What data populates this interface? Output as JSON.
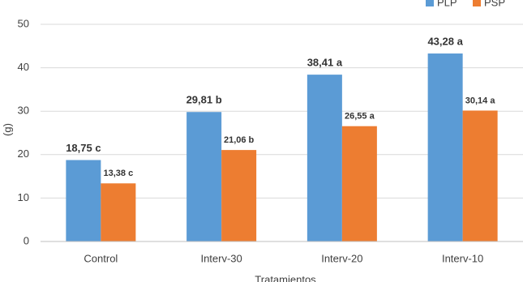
{
  "chart_data": {
    "type": "bar",
    "x_label": "Tratamientos",
    "y_label": "(g)",
    "categories": [
      "Control",
      "Interv-30",
      "Interv-20",
      "Interv-10"
    ],
    "series": [
      {
        "name": "PLP",
        "color": "#5b9bd5",
        "values": [
          18.75,
          29.81,
          38.41,
          43.28
        ],
        "value_labels": [
          "18,75 c",
          "29,81 b",
          "38,41 a",
          "43,28 a"
        ]
      },
      {
        "name": "PSP",
        "color": "#ed7d31",
        "values": [
          13.38,
          21.06,
          26.55,
          30.14
        ],
        "value_labels": [
          "13,38 c",
          "21,06 b",
          "26,55 a",
          "30,14 a"
        ]
      }
    ],
    "ylim": [
      0,
      50
    ],
    "yticks": [
      0,
      10,
      20,
      30,
      40,
      50
    ],
    "grid": true,
    "legend": "top-right"
  }
}
